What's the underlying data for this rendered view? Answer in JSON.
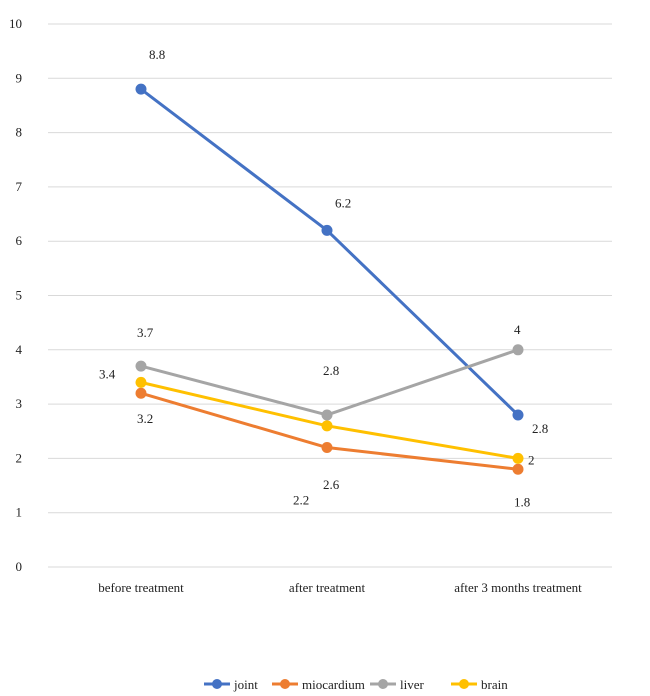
{
  "chart_data": {
    "type": "line",
    "categories": [
      "before treatment",
      "after treatment",
      "after 3 months treatment"
    ],
    "ylim": [
      0,
      10
    ],
    "yticks": [
      0,
      1,
      2,
      3,
      4,
      5,
      6,
      7,
      8,
      9,
      10
    ],
    "grid": true,
    "legend_position": "bottom",
    "series": [
      {
        "name": "joint",
        "color": "#4472C4",
        "values": [
          8.8,
          6.2,
          2.8
        ]
      },
      {
        "name": "miocardium",
        "color": "#ED7D31",
        "values": [
          3.2,
          2.2,
          1.8
        ]
      },
      {
        "name": "liver",
        "color": "#A5A5A5",
        "values": [
          3.7,
          2.8,
          4
        ]
      },
      {
        "name": "brain",
        "color": "#FFC000",
        "values": [
          3.4,
          2.6,
          2
        ]
      }
    ]
  }
}
